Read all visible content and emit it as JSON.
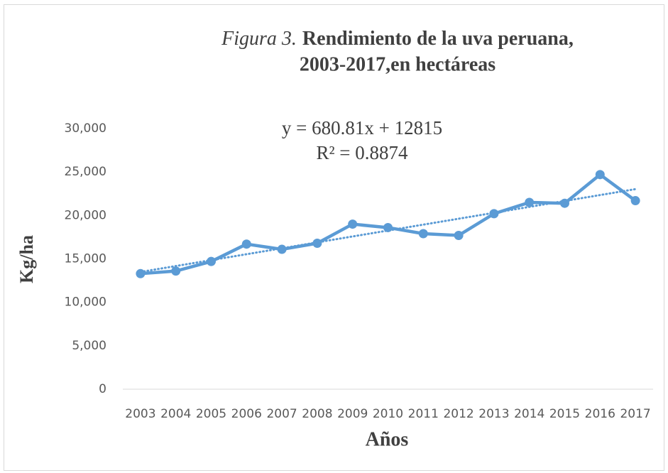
{
  "chart_data": {
    "type": "line",
    "title_prefix": "Figura 3.",
    "title_lines": [
      "Rendimiento de la uva peruana,",
      "2003-2017,en hectáreas"
    ],
    "x_label": "Años",
    "y_label": "Kg/ha",
    "annotations": [
      "y = 680.81x + 12815",
      "R² = 0.8874"
    ],
    "trendline": {
      "slope": 680.81,
      "intercept": 12815
    },
    "categories": [
      "2003",
      "2004",
      "2005",
      "2006",
      "2007",
      "2008",
      "2009",
      "2010",
      "2011",
      "2012",
      "2013",
      "2014",
      "2015",
      "2016",
      "2017"
    ],
    "series": [
      {
        "color": "#5b9bd5",
        "values": [
          13300,
          13600,
          14700,
          16700,
          16100,
          16800,
          19000,
          18600,
          17900,
          17700,
          20200,
          21500,
          21400,
          24700,
          21700
        ]
      }
    ],
    "ylim": [
      0,
      30000
    ],
    "yticks": [
      0,
      {
        "value": 5000,
        "label": "5,000"
      },
      {
        "value": 10000,
        "label": "10,000"
      },
      {
        "value": 15000,
        "label": "15,000"
      },
      {
        "value": 20000,
        "label": "20,000"
      },
      {
        "value": 25000,
        "label": "25,000"
      },
      {
        "value": 30000,
        "label": "30,000"
      }
    ],
    "grid": false
  }
}
